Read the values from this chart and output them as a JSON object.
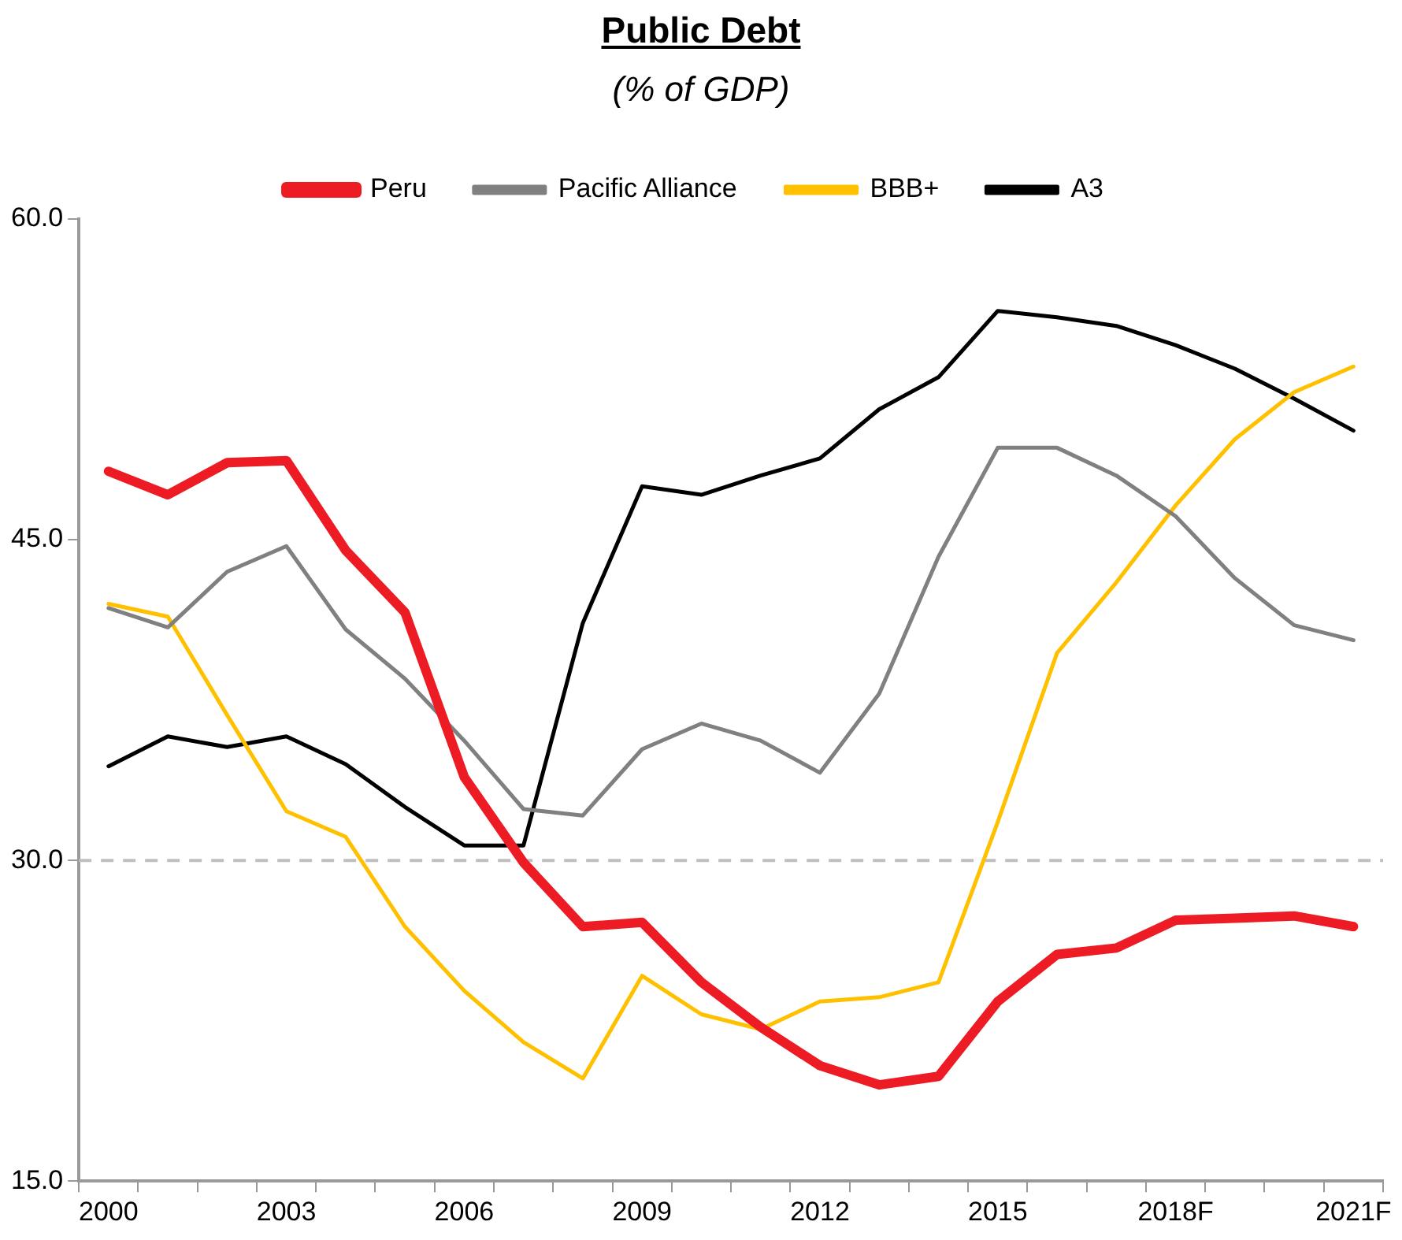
{
  "chart_data": {
    "type": "line",
    "title": "Public Debt",
    "subtitle": "(% of GDP)",
    "categories": [
      "2000",
      null,
      null,
      "2003",
      null,
      null,
      "2006",
      null,
      null,
      "2009",
      null,
      null,
      "2012",
      null,
      null,
      "2015",
      null,
      null,
      "2018F",
      null,
      null,
      "2021F"
    ],
    "series": [
      {
        "name": "Peru",
        "color": "#ed1c24",
        "values": [
          48.2,
          47.1,
          48.6,
          48.7,
          44.5,
          41.6,
          33.9,
          29.9,
          26.9,
          27.1,
          24.3,
          22.2,
          20.4,
          19.5,
          19.9,
          23.4,
          25.6,
          25.9,
          27.2,
          27.3,
          27.4,
          26.9
        ]
      },
      {
        "name": "Pacific Alliance",
        "color": "#808080",
        "values": [
          41.8,
          40.9,
          43.5,
          44.7,
          40.8,
          38.5,
          35.6,
          32.4,
          32.1,
          35.2,
          36.4,
          35.6,
          34.1,
          37.8,
          44.2,
          49.3,
          49.3,
          48.0,
          46.1,
          43.2,
          41.0,
          40.3
        ]
      },
      {
        "name": "BBB+",
        "color": "#ffc000",
        "values": [
          42.0,
          41.4,
          36.8,
          32.3,
          31.1,
          26.9,
          23.9,
          21.5,
          19.8,
          24.6,
          22.8,
          22.1,
          23.4,
          23.6,
          24.3,
          31.8,
          39.7,
          43.0,
          46.6,
          49.7,
          51.9,
          53.1
        ]
      },
      {
        "name": "A3",
        "color": "#000000",
        "values": [
          34.4,
          35.8,
          35.3,
          35.8,
          34.5,
          32.5,
          30.7,
          30.7,
          41.1,
          47.5,
          47.1,
          48.0,
          48.8,
          51.1,
          52.6,
          55.7,
          55.4,
          55.0,
          54.1,
          53.0,
          51.6,
          50.1
        ]
      }
    ],
    "ylim": [
      15,
      60
    ],
    "yticks": [
      {
        "value": 15,
        "label": "15.0"
      },
      {
        "value": 30,
        "label": "30.0"
      },
      {
        "value": 45,
        "label": "45.0"
      },
      {
        "value": 60,
        "label": "60.0"
      }
    ],
    "ref_lines": [
      {
        "axis": "y",
        "value": 30,
        "color": "#bfbfbf",
        "line_style": "dashed"
      }
    ],
    "grid": false,
    "legend": "top",
    "marker": "none",
    "line_style": "solid"
  }
}
